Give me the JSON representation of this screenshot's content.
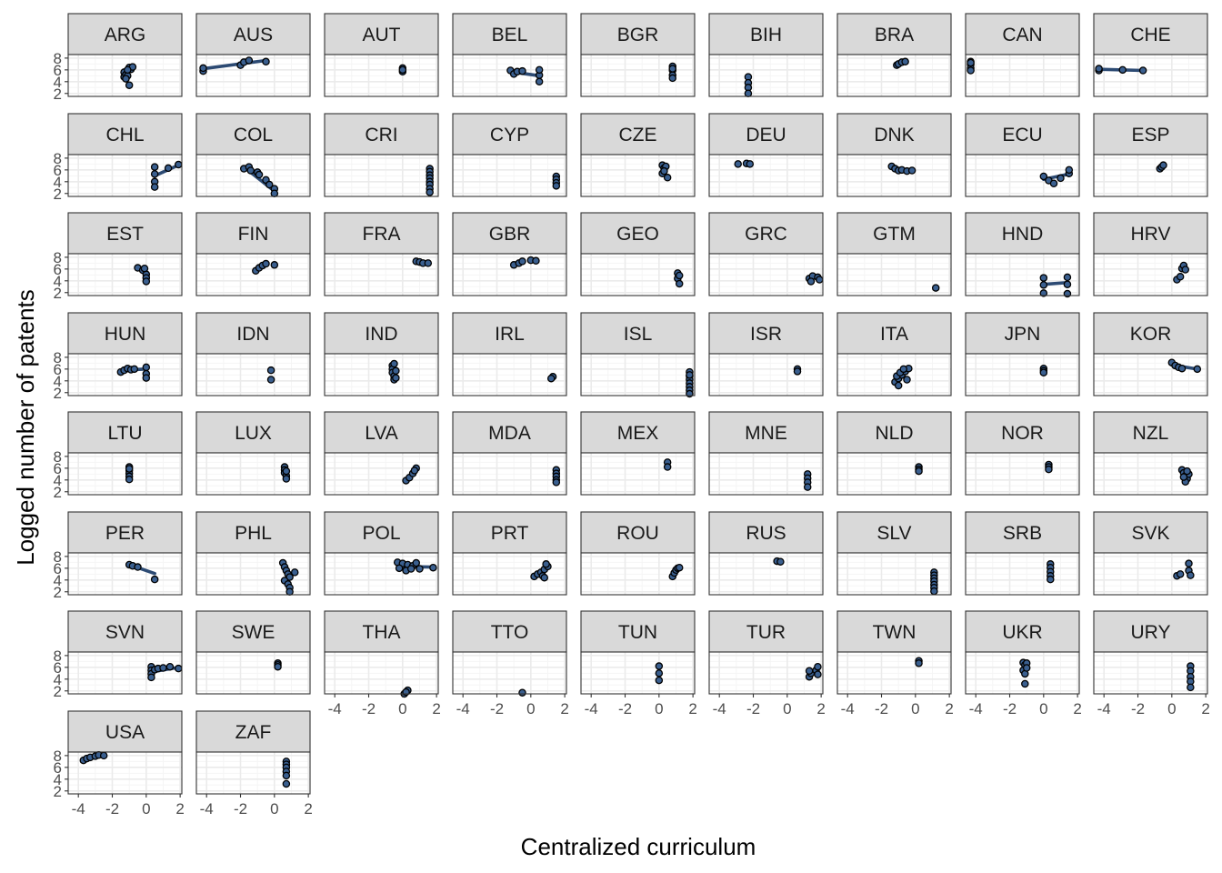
{
  "chart_data": {
    "type": "scatter",
    "title": "",
    "xlabel": "Centralized curriculum",
    "ylabel": "Logged number of patents",
    "xlim": [
      -4.6,
      2.1
    ],
    "ylim": [
      1.5,
      8.6
    ],
    "x_ticks": [
      -4,
      -2,
      0,
      2
    ],
    "x_tick_labels": [
      "-4",
      "-2",
      "0",
      "2"
    ],
    "y_ticks": [
      2,
      4,
      6,
      8
    ],
    "y_tick_labels": [
      "2",
      "4",
      "6",
      "8"
    ],
    "grid": true,
    "legend": "none",
    "trend_lines": true,
    "colors": {
      "point_fill": "#3a5f8f",
      "point_stroke": "#000000",
      "trend_line": "#2c4a73",
      "strip_fill": "#d9d9d9",
      "panel_border": "#333333",
      "grid_major": "#ebebeb",
      "grid_minor": "#f5f5f5"
    },
    "panels": [
      {
        "label": "ARG",
        "x": [
          -1.3,
          -1.3,
          -1.2,
          -1.0,
          -0.9,
          -1.1,
          -1.2,
          -0.8,
          -1.0,
          -1.1
        ],
        "y": [
          5.6,
          4.8,
          5.2,
          6.4,
          6.1,
          5.0,
          4.5,
          6.5,
          3.4,
          6.0
        ],
        "fit": [
          [
            -1.3,
            5.2
          ],
          [
            -0.8,
            6.2
          ]
        ]
      },
      {
        "label": "AUS",
        "x": [
          -4.2,
          -4.2,
          -2.0,
          -1.8,
          -1.5,
          -0.5
        ],
        "y": [
          5.8,
          6.3,
          6.8,
          7.3,
          7.6,
          7.4
        ],
        "fit": [
          [
            -4.2,
            6.2
          ],
          [
            -0.5,
            7.6
          ]
        ]
      },
      {
        "label": "AUT",
        "x": [
          0.0,
          0.0,
          0.0
        ],
        "y": [
          6.3,
          5.7,
          6.0
        ],
        "fit": null
      },
      {
        "label": "BEL",
        "x": [
          -1.2,
          -1.0,
          -0.8,
          -0.5,
          0.5,
          0.5,
          0.5
        ],
        "y": [
          5.9,
          5.3,
          5.7,
          5.8,
          5.1,
          4.0,
          6.0
        ],
        "fit": [
          [
            -1.2,
            5.7
          ],
          [
            0.5,
            5.0
          ]
        ]
      },
      {
        "label": "BGR",
        "x": [
          0.8,
          0.8,
          0.8,
          0.8,
          0.8
        ],
        "y": [
          6.6,
          5.9,
          5.1,
          4.6,
          6.2
        ],
        "fit": null
      },
      {
        "label": "BIH",
        "x": [
          -2.3,
          -2.3,
          -2.3,
          -2.3
        ],
        "y": [
          4.8,
          3.8,
          3.0,
          2.0
        ],
        "fit": null
      },
      {
        "label": "BRA",
        "x": [
          -1.1,
          -1.0,
          -0.8,
          -0.6
        ],
        "y": [
          6.8,
          7.0,
          7.3,
          7.4
        ],
        "fit": null
      },
      {
        "label": "CAN",
        "x": [
          -4.3,
          -4.3,
          -4.3,
          -4.3,
          -4.3
        ],
        "y": [
          7.4,
          6.9,
          6.3,
          5.9,
          7.2
        ],
        "fit": null
      },
      {
        "label": "CHE",
        "x": [
          -4.3,
          -4.3,
          -2.9,
          -1.7
        ],
        "y": [
          5.9,
          6.2,
          6.0,
          5.9
        ],
        "fit": [
          [
            -4.3,
            6.1
          ],
          [
            -1.7,
            5.9
          ]
        ]
      },
      {
        "label": "CHL",
        "x": [
          0.5,
          0.5,
          0.5,
          0.5,
          1.3,
          1.9
        ],
        "y": [
          6.5,
          5.3,
          4.0,
          3.1,
          6.3,
          6.9
        ],
        "fit": [
          [
            0.5,
            5.0
          ],
          [
            1.9,
            6.8
          ]
        ]
      },
      {
        "label": "COL",
        "x": [
          -1.8,
          -1.5,
          -1.4,
          -1.0,
          -0.9,
          -0.5,
          -0.3,
          0.0,
          0.0
        ],
        "y": [
          6.2,
          6.5,
          5.9,
          5.6,
          5.2,
          4.3,
          3.5,
          2.8,
          2.0
        ],
        "fit": [
          [
            -1.8,
            6.5
          ],
          [
            0.0,
            2.4
          ]
        ]
      },
      {
        "label": "CRI",
        "x": [
          1.6,
          1.6,
          1.6,
          1.6,
          1.6,
          1.6,
          1.6,
          1.6
        ],
        "y": [
          6.2,
          5.7,
          5.1,
          4.6,
          4.0,
          3.5,
          2.8,
          2.2
        ],
        "fit": null
      },
      {
        "label": "CYP",
        "x": [
          1.5,
          1.5,
          1.5,
          1.5
        ],
        "y": [
          4.9,
          4.4,
          3.8,
          3.3
        ],
        "fit": null
      },
      {
        "label": "CZE",
        "x": [
          0.2,
          0.3,
          0.2,
          0.4,
          0.5,
          0.3
        ],
        "y": [
          6.8,
          6.3,
          5.4,
          6.6,
          4.7,
          5.8
        ],
        "fit": null
      },
      {
        "label": "DEU",
        "x": [
          -2.9,
          -2.4,
          -2.2
        ],
        "y": [
          7.0,
          7.1,
          7.0
        ],
        "fit": null
      },
      {
        "label": "DNK",
        "x": [
          -1.4,
          -1.2,
          -1.0,
          -0.8,
          -0.5,
          -0.2
        ],
        "y": [
          6.6,
          6.2,
          5.9,
          6.0,
          5.8,
          5.9
        ],
        "fit": null
      },
      {
        "label": "ECU",
        "x": [
          0.0,
          0.3,
          0.6,
          1.0,
          1.5,
          1.5
        ],
        "y": [
          4.9,
          4.2,
          3.7,
          4.6,
          5.4,
          6.0
        ],
        "fit": [
          [
            0.0,
            4.4
          ],
          [
            1.5,
            5.3
          ]
        ]
      },
      {
        "label": "ESP",
        "x": [
          -0.7,
          -0.6,
          -0.5
        ],
        "y": [
          6.2,
          6.5,
          6.8
        ],
        "fit": null
      },
      {
        "label": "EST",
        "x": [
          -0.5,
          -0.2,
          0.0,
          0.0,
          0.0,
          -0.1
        ],
        "y": [
          6.2,
          5.8,
          5.1,
          4.5,
          3.9,
          6.1
        ],
        "fit": null
      },
      {
        "label": "FIN",
        "x": [
          -1.1,
          -0.9,
          -0.7,
          -0.5,
          0.0
        ],
        "y": [
          5.7,
          6.2,
          6.6,
          6.9,
          6.7
        ],
        "fit": null
      },
      {
        "label": "FRA",
        "x": [
          0.8,
          1.0,
          1.2,
          1.5
        ],
        "y": [
          7.3,
          7.2,
          7.0,
          7.0
        ],
        "fit": null
      },
      {
        "label": "GBR",
        "x": [
          -1.0,
          -0.7,
          -0.5,
          0.0,
          0.3
        ],
        "y": [
          6.7,
          7.0,
          7.3,
          7.5,
          7.4
        ],
        "fit": null
      },
      {
        "label": "GEO",
        "x": [
          1.1,
          1.1,
          1.2,
          1.2
        ],
        "y": [
          5.3,
          4.4,
          3.5,
          4.9
        ],
        "fit": null
      },
      {
        "label": "GRC",
        "x": [
          1.3,
          1.5,
          1.8,
          1.9,
          1.4
        ],
        "y": [
          4.4,
          4.8,
          4.6,
          4.2,
          3.9
        ],
        "fit": null
      },
      {
        "label": "GTM",
        "x": [
          1.2
        ],
        "y": [
          2.8
        ],
        "fit": null
      },
      {
        "label": "HND",
        "x": [
          0.0,
          0.0,
          0.0,
          1.4,
          1.4,
          1.4
        ],
        "y": [
          4.5,
          3.3,
          1.9,
          4.6,
          3.4,
          1.8
        ],
        "fit": [
          [
            0.0,
            3.4
          ],
          [
            1.4,
            3.7
          ]
        ]
      },
      {
        "label": "HRV",
        "x": [
          0.3,
          0.5,
          0.6,
          0.7,
          0.8
        ],
        "y": [
          4.2,
          4.7,
          6.1,
          6.6,
          5.9
        ],
        "fit": null
      },
      {
        "label": "HUN",
        "x": [
          -1.5,
          -1.3,
          -1.1,
          -0.9,
          -0.7,
          0.0,
          0.0,
          0.0
        ],
        "y": [
          5.5,
          5.8,
          6.1,
          5.9,
          6.0,
          6.3,
          5.2,
          4.5
        ],
        "fit": [
          [
            -1.5,
            5.8
          ],
          [
            0.0,
            6.0
          ]
        ]
      },
      {
        "label": "IDN",
        "x": [
          -0.2,
          -0.2
        ],
        "y": [
          5.8,
          4.2
        ],
        "fit": null
      },
      {
        "label": "IND",
        "x": [
          -0.6,
          -0.6,
          -0.6,
          -0.5,
          -0.5,
          -0.5,
          -0.4,
          -0.4
        ],
        "y": [
          6.6,
          6.0,
          5.4,
          4.8,
          4.2,
          6.9,
          5.7,
          4.5
        ],
        "fit": null
      },
      {
        "label": "IRL",
        "x": [
          1.3,
          1.2
        ],
        "y": [
          4.7,
          4.4
        ],
        "fit": null
      },
      {
        "label": "ISL",
        "x": [
          1.8,
          1.8,
          1.8,
          1.8,
          1.8,
          1.8,
          1.8,
          1.8
        ],
        "y": [
          5.5,
          4.8,
          4.2,
          3.6,
          3.0,
          2.4,
          1.8,
          5.0
        ],
        "fit": null
      },
      {
        "label": "ISR",
        "x": [
          0.6,
          0.6
        ],
        "y": [
          6.0,
          5.6
        ],
        "fit": null
      },
      {
        "label": "ITA",
        "x": [
          -1.2,
          -1.0,
          -0.8,
          -0.6,
          -0.4,
          -1.1,
          -0.9,
          -0.7,
          -0.5,
          -1.0
        ],
        "y": [
          3.8,
          4.4,
          5.0,
          5.6,
          6.1,
          4.8,
          5.4,
          6.0,
          4.2,
          3.2
        ],
        "fit": null
      },
      {
        "label": "JPN",
        "x": [
          0.0,
          0.0,
          0.0
        ],
        "y": [
          6.1,
          5.7,
          5.4
        ],
        "fit": null
      },
      {
        "label": "KOR",
        "x": [
          0.0,
          0.2,
          0.4,
          0.6,
          1.5
        ],
        "y": [
          7.1,
          6.6,
          6.3,
          6.1,
          6.0
        ],
        "fit": [
          [
            0.0,
            6.7
          ],
          [
            1.5,
            6.0
          ]
        ]
      },
      {
        "label": "LTU",
        "x": [
          -1.0,
          -1.0,
          -1.0,
          -1.0,
          -1.0,
          -1.0
        ],
        "y": [
          6.2,
          5.6,
          5.1,
          4.6,
          4.1,
          5.9
        ],
        "fit": null
      },
      {
        "label": "LUX",
        "x": [
          0.6,
          0.6,
          0.6,
          0.7,
          0.7,
          0.7
        ],
        "y": [
          6.2,
          5.7,
          5.2,
          4.7,
          4.2,
          5.5
        ],
        "fit": null
      },
      {
        "label": "LVA",
        "x": [
          0.2,
          0.4,
          0.6,
          0.8,
          0.7
        ],
        "y": [
          3.9,
          4.4,
          5.1,
          6.0,
          5.6
        ],
        "fit": null
      },
      {
        "label": "MDA",
        "x": [
          1.5,
          1.5,
          1.5,
          1.5,
          1.5
        ],
        "y": [
          5.7,
          5.1,
          4.6,
          4.0,
          3.6
        ],
        "fit": null
      },
      {
        "label": "MEX",
        "x": [
          0.5,
          0.5
        ],
        "y": [
          7.0,
          6.2
        ],
        "fit": null
      },
      {
        "label": "MNE",
        "x": [
          1.2,
          1.2,
          1.2,
          1.2
        ],
        "y": [
          5.0,
          4.3,
          3.6,
          2.8
        ],
        "fit": null
      },
      {
        "label": "NLD",
        "x": [
          0.2,
          0.2,
          0.2
        ],
        "y": [
          6.2,
          5.8,
          5.5
        ],
        "fit": null
      },
      {
        "label": "NOR",
        "x": [
          0.3,
          0.3,
          0.3
        ],
        "y": [
          6.6,
          6.2,
          5.8
        ],
        "fit": null
      },
      {
        "label": "NZL",
        "x": [
          0.6,
          0.7,
          0.8,
          0.9,
          1.0,
          0.8,
          0.7,
          0.9
        ],
        "y": [
          5.7,
          5.2,
          4.7,
          4.2,
          5.0,
          3.7,
          4.5,
          5.5
        ],
        "fit": null
      },
      {
        "label": "PER",
        "x": [
          -1.0,
          -0.8,
          -0.5,
          0.5
        ],
        "y": [
          6.6,
          6.4,
          6.2,
          4.1
        ],
        "fit": [
          [
            -1.0,
            6.6
          ],
          [
            0.5,
            5.1
          ]
        ]
      },
      {
        "label": "PHL",
        "x": [
          0.5,
          0.6,
          0.7,
          0.8,
          0.9,
          1.2,
          0.6,
          0.8,
          0.9,
          0.9
        ],
        "y": [
          6.9,
          6.2,
          5.6,
          5.0,
          4.5,
          5.3,
          3.9,
          3.3,
          2.7,
          2.0
        ],
        "fit": null
      },
      {
        "label": "POL",
        "x": [
          -0.3,
          0.0,
          0.3,
          0.6,
          0.8,
          1.0,
          1.8,
          -0.2,
          0.2,
          0.5
        ],
        "y": [
          7.0,
          6.8,
          6.6,
          6.4,
          6.9,
          5.9,
          6.1,
          6.0,
          5.6,
          5.9
        ],
        "fit": [
          [
            -0.3,
            6.3
          ],
          [
            1.8,
            6.2
          ]
        ]
      },
      {
        "label": "PRT",
        "x": [
          0.2,
          0.4,
          0.6,
          0.8,
          1.0,
          0.9,
          0.7,
          0.8
        ],
        "y": [
          4.6,
          5.0,
          5.3,
          5.8,
          6.3,
          6.7,
          4.7,
          4.4
        ],
        "fit": null
      },
      {
        "label": "ROU",
        "x": [
          0.8,
          0.9,
          1.0,
          1.1,
          1.2
        ],
        "y": [
          4.6,
          5.2,
          5.7,
          6.0,
          6.1
        ],
        "fit": null
      },
      {
        "label": "RUS",
        "x": [
          -0.6,
          -0.4
        ],
        "y": [
          7.2,
          7.1
        ],
        "fit": null
      },
      {
        "label": "SLV",
        "x": [
          1.1,
          1.1,
          1.1,
          1.1,
          1.1,
          1.1,
          1.1
        ],
        "y": [
          5.3,
          4.8,
          4.3,
          3.8,
          3.2,
          2.7,
          2.1
        ],
        "fit": null
      },
      {
        "label": "SRB",
        "x": [
          0.4,
          0.4,
          0.4,
          0.4,
          0.4
        ],
        "y": [
          6.7,
          6.1,
          5.4,
          4.7,
          4.1
        ],
        "fit": null
      },
      {
        "label": "SVK",
        "x": [
          0.3,
          0.5,
          1.0,
          1.0,
          1.1
        ],
        "y": [
          4.7,
          5.0,
          5.6,
          6.8,
          4.8
        ],
        "fit": null
      },
      {
        "label": "SVN",
        "x": [
          0.3,
          0.3,
          0.3,
          0.3,
          0.5,
          0.7,
          1.0,
          1.4,
          1.9
        ],
        "y": [
          6.1,
          5.5,
          4.9,
          4.3,
          5.6,
          5.8,
          5.9,
          6.1,
          5.8
        ],
        "fit": [
          [
            0.3,
            5.2
          ],
          [
            1.9,
            6.0
          ]
        ]
      },
      {
        "label": "SWE",
        "x": [
          0.2,
          0.2,
          0.2
        ],
        "y": [
          6.7,
          6.4,
          6.1
        ],
        "fit": null
      },
      {
        "label": "THA",
        "x": [
          0.1,
          0.3,
          0.2
        ],
        "y": [
          1.5,
          2.1,
          1.8
        ],
        "fit": null
      },
      {
        "label": "TTO",
        "x": [
          -0.5
        ],
        "y": [
          1.7
        ],
        "fit": null
      },
      {
        "label": "TUN",
        "x": [
          0.0,
          0.0,
          0.0
        ],
        "y": [
          6.2,
          5.0,
          3.8
        ],
        "fit": null
      },
      {
        "label": "TUR",
        "x": [
          1.3,
          1.4,
          1.7,
          1.8,
          1.8,
          1.3
        ],
        "y": [
          4.4,
          5.0,
          5.5,
          6.1,
          4.8,
          5.4
        ],
        "fit": null
      },
      {
        "label": "TWN",
        "x": [
          0.2,
          0.2
        ],
        "y": [
          7.1,
          6.7
        ],
        "fit": null
      },
      {
        "label": "UKR",
        "x": [
          -1.2,
          -1.1,
          -1.0,
          -1.2,
          -1.1,
          -1.0,
          -1.1
        ],
        "y": [
          6.8,
          6.4,
          6.7,
          5.5,
          4.9,
          5.9,
          3.2
        ],
        "fit": null
      },
      {
        "label": "URY",
        "x": [
          1.1,
          1.1,
          1.1,
          1.1,
          1.1
        ],
        "y": [
          6.2,
          5.4,
          4.4,
          3.6,
          2.6
        ],
        "fit": null
      },
      {
        "label": "USA",
        "x": [
          -3.7,
          -3.5,
          -3.3,
          -3.0,
          -2.8,
          -2.5
        ],
        "y": [
          7.2,
          7.5,
          7.7,
          7.9,
          8.1,
          8.0
        ],
        "fit": [
          [
            -3.7,
            7.4
          ],
          [
            -2.5,
            8.0
          ]
        ]
      },
      {
        "label": "ZAF",
        "x": [
          0.7,
          0.7,
          0.7,
          0.7,
          0.7,
          0.7
        ],
        "y": [
          7.0,
          6.5,
          6.0,
          5.3,
          4.6,
          3.2
        ],
        "fit": null
      }
    ]
  }
}
